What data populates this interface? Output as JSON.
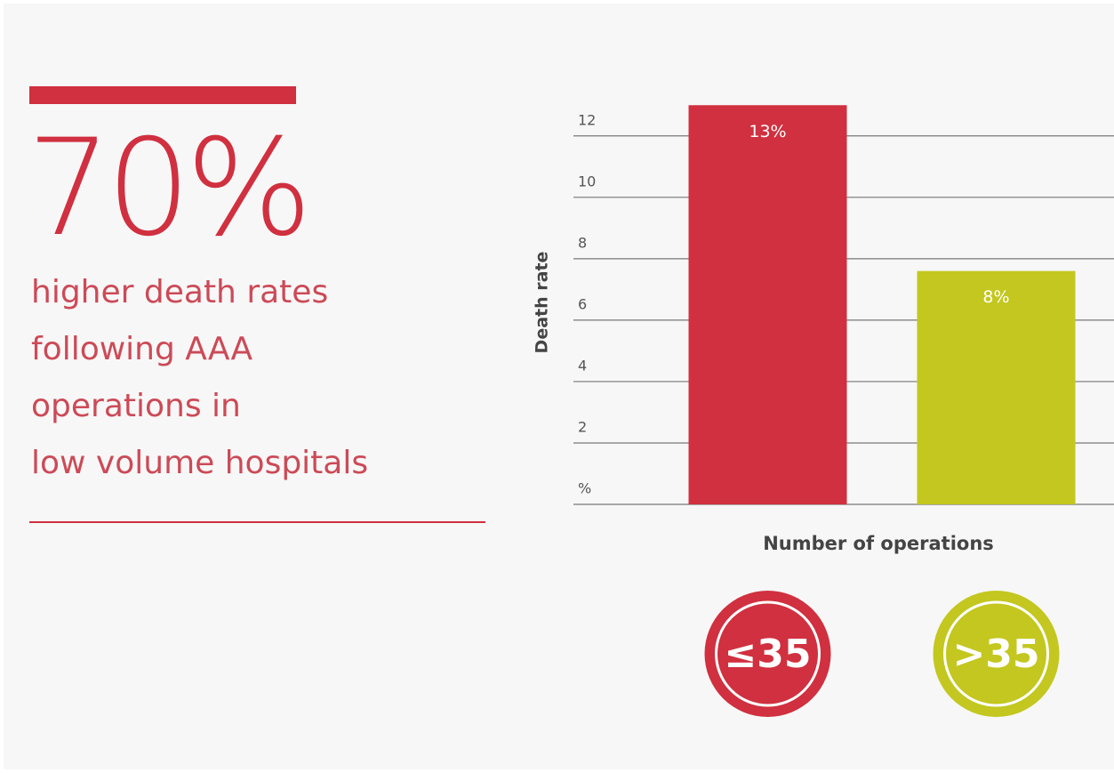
{
  "callout": {
    "figure": "70%",
    "lines": [
      "higher death rates",
      "following AAA",
      "operations in",
      "low volume hospitals"
    ]
  },
  "chart_data": {
    "type": "bar",
    "x_label": "Number of operations",
    "y_label": "Death rate",
    "categories": [
      "≤35",
      ">35"
    ],
    "values": [
      13,
      7.6
    ],
    "value_labels": [
      "13%",
      "8%"
    ],
    "colors": [
      "#d0303f",
      "#c3c71f"
    ],
    "ylim": [
      0,
      13.5
    ],
    "yticks": [
      {
        "value": 0,
        "label": "%"
      },
      2,
      4,
      6,
      8,
      10,
      12
    ],
    "grid": true
  }
}
